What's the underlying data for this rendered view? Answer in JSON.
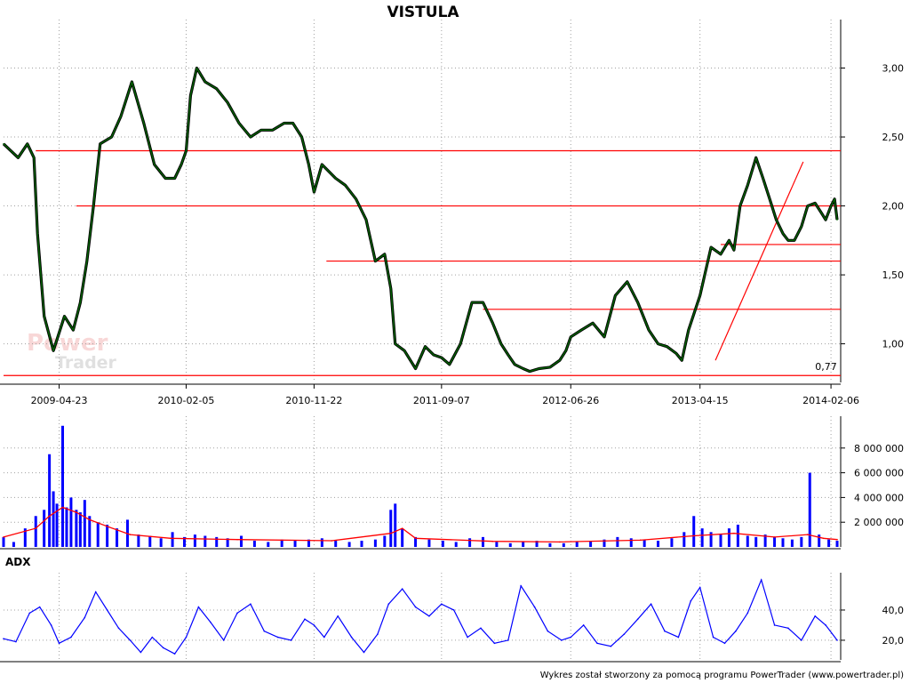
{
  "chart_data": [
    {
      "type": "line",
      "title": "VISTULA",
      "x_ticks": [
        "2009-04-23",
        "2010-02-05",
        "2010-11-22",
        "2011-09-07",
        "2012-06-26",
        "2013-04-15",
        "2014-02-06"
      ],
      "y_ticks": [
        "1,00",
        "1,50",
        "2,00",
        "2,50",
        "3,00"
      ],
      "ylim": [
        0.72,
        3.3
      ],
      "xlim": [
        "2008-12-18",
        "2014-02-28"
      ],
      "grid": true,
      "series": [
        {
          "color": "#006400",
          "x": [
            "2008-12-18",
            "2009-01-20",
            "2009-02-10",
            "2009-02-25",
            "2009-03-05",
            "2009-03-20",
            "2009-04-10",
            "2009-05-05",
            "2009-05-25",
            "2009-06-10",
            "2009-06-25",
            "2009-07-10",
            "2009-07-25",
            "2009-08-20",
            "2009-09-10",
            "2009-10-05",
            "2009-11-01",
            "2009-11-25",
            "2009-12-20",
            "2010-01-10",
            "2010-01-25",
            "2010-02-05",
            "2010-02-15",
            "2010-03-01",
            "2010-03-20",
            "2010-04-15",
            "2010-05-10",
            "2010-06-05",
            "2010-07-01",
            "2010-07-25",
            "2010-08-20",
            "2010-09-15",
            "2010-10-05",
            "2010-10-25",
            "2010-11-10",
            "2010-11-22",
            "2010-12-10",
            "2011-01-10",
            "2011-02-01",
            "2011-02-25",
            "2011-03-20",
            "2011-04-10",
            "2011-05-01",
            "2011-05-15",
            "2011-05-25",
            "2011-06-15",
            "2011-07-10",
            "2011-08-01",
            "2011-08-20",
            "2011-09-07",
            "2011-09-25",
            "2011-10-20",
            "2011-11-15",
            "2011-12-10",
            "2012-01-01",
            "2012-01-20",
            "2012-02-05",
            "2012-02-20",
            "2012-03-10",
            "2012-03-25",
            "2012-04-15",
            "2012-05-10",
            "2012-06-01",
            "2012-06-15",
            "2012-06-26",
            "2012-07-20",
            "2012-08-15",
            "2012-09-10",
            "2012-10-05",
            "2012-11-01",
            "2012-11-25",
            "2012-12-20",
            "2013-01-10",
            "2013-01-30",
            "2013-02-20",
            "2013-03-05",
            "2013-03-20",
            "2013-04-15",
            "2013-05-10",
            "2013-06-01",
            "2013-06-20",
            "2013-07-01",
            "2013-07-15",
            "2013-08-01",
            "2013-08-20",
            "2013-09-05",
            "2013-09-20",
            "2013-10-05",
            "2013-10-20",
            "2013-11-01",
            "2013-11-15",
            "2013-12-01",
            "2013-12-15",
            "2014-01-01",
            "2014-01-15",
            "2014-01-25",
            "2014-02-06",
            "2014-02-14",
            "2014-02-20"
          ],
          "y": [
            2.45,
            2.35,
            2.45,
            2.35,
            1.8,
            1.2,
            0.95,
            1.2,
            1.1,
            1.3,
            1.6,
            2.0,
            2.45,
            2.5,
            2.65,
            2.9,
            2.6,
            2.3,
            2.2,
            2.2,
            2.3,
            2.4,
            2.8,
            3.0,
            2.9,
            2.85,
            2.75,
            2.6,
            2.5,
            2.55,
            2.55,
            2.6,
            2.6,
            2.5,
            2.3,
            2.1,
            2.3,
            2.2,
            2.15,
            2.05,
            1.9,
            1.6,
            1.65,
            1.4,
            1.0,
            0.95,
            0.82,
            0.98,
            0.92,
            0.9,
            0.85,
            1.0,
            1.3,
            1.3,
            1.15,
            1.0,
            0.92,
            0.85,
            0.82,
            0.8,
            0.82,
            0.83,
            0.88,
            0.95,
            1.05,
            1.1,
            1.15,
            1.05,
            1.35,
            1.45,
            1.3,
            1.1,
            1.0,
            0.98,
            0.93,
            0.88,
            1.1,
            1.35,
            1.7,
            1.65,
            1.75,
            1.68,
            2.0,
            2.15,
            2.35,
            2.2,
            2.05,
            1.9,
            1.8,
            1.75,
            1.75,
            1.85,
            2.0,
            2.02,
            1.95,
            1.9,
            2.0,
            2.05,
            1.9
          ]
        }
      ],
      "lines": [
        {
          "color": "#ff0000",
          "x": [
            "2008-12-18",
            "2014-02-28"
          ],
          "y": [
            0.77,
            0.77
          ]
        },
        {
          "color": "#ff0000",
          "x": [
            "2009-03-01",
            "2014-02-28"
          ],
          "y": [
            2.4,
            2.4
          ]
        },
        {
          "color": "#ff0000",
          "x": [
            "2009-06-01",
            "2014-02-28"
          ],
          "y": [
            2.0,
            2.0
          ]
        },
        {
          "color": "#ff0000",
          "x": [
            "2010-12-20",
            "2014-02-28"
          ],
          "y": [
            1.6,
            1.6
          ]
        },
        {
          "color": "#ff0000",
          "x": [
            "2011-12-10",
            "2014-02-28"
          ],
          "y": [
            1.25,
            1.25
          ]
        },
        {
          "color": "#ff0000",
          "x": [
            "2013-06-01",
            "2014-02-28"
          ],
          "y": [
            1.72,
            1.72
          ]
        },
        {
          "color": "#ff0000",
          "x": [
            "2013-05-20",
            "2013-12-05"
          ],
          "y": [
            0.88,
            2.32
          ]
        }
      ],
      "annotations": [
        {
          "text": "0,77",
          "x": "2014-01-01",
          "y": 0.77,
          "color": "#ff0000"
        }
      ]
    },
    {
      "type": "bar",
      "y_ticks": [
        "2 000 000",
        "4 000 000",
        "6 000 000",
        "8 000 000"
      ],
      "ylim": [
        0,
        10000000
      ],
      "xlim": [
        "2008-12-18",
        "2014-02-28"
      ],
      "grid": true,
      "series": [
        {
          "color": "#0000ff",
          "x": [
            "2008-12-18",
            "2009-01-10",
            "2009-02-05",
            "2009-03-01",
            "2009-03-20",
            "2009-04-01",
            "2009-04-10",
            "2009-04-18",
            "2009-05-01",
            "2009-05-10",
            "2009-05-20",
            "2009-06-01",
            "2009-06-10",
            "2009-06-20",
            "2009-07-01",
            "2009-07-20",
            "2009-08-10",
            "2009-09-01",
            "2009-09-25",
            "2009-10-20",
            "2009-11-15",
            "2009-12-10",
            "2010-01-05",
            "2010-02-01",
            "2010-02-25",
            "2010-03-20",
            "2010-04-15",
            "2010-05-10",
            "2010-06-10",
            "2010-07-10",
            "2010-08-10",
            "2010-09-10",
            "2010-10-10",
            "2010-11-10",
            "2010-12-10",
            "2011-01-10",
            "2011-02-10",
            "2011-03-10",
            "2011-04-10",
            "2011-05-01",
            "2011-05-15",
            "2011-05-25",
            "2011-06-10",
            "2011-07-10",
            "2011-08-10",
            "2011-09-10",
            "2011-10-10",
            "2011-11-10",
            "2011-12-10",
            "2012-01-10",
            "2012-02-10",
            "2012-03-10",
            "2012-04-10",
            "2012-05-10",
            "2012-06-10",
            "2012-07-10",
            "2012-08-10",
            "2012-09-10",
            "2012-10-10",
            "2012-11-10",
            "2012-12-10",
            "2013-01-10",
            "2013-02-10",
            "2013-03-10",
            "2013-04-01",
            "2013-04-20",
            "2013-05-10",
            "2013-06-01",
            "2013-06-20",
            "2013-07-10",
            "2013-08-01",
            "2013-08-20",
            "2013-09-10",
            "2013-10-01",
            "2013-10-20",
            "2013-11-10",
            "2013-12-01",
            "2013-12-20",
            "2014-01-10",
            "2014-02-01",
            "2014-02-20"
          ],
          "values": [
            800000,
            400000,
            1500000,
            2500000,
            3000000,
            7500000,
            4500000,
            3500000,
            9800000,
            3200000,
            4000000,
            3000000,
            2800000,
            3800000,
            2500000,
            2000000,
            1800000,
            1500000,
            2200000,
            1000000,
            900000,
            700000,
            1200000,
            800000,
            1000000,
            900000,
            800000,
            700000,
            900000,
            500000,
            400000,
            600000,
            500000,
            600000,
            700000,
            500000,
            400000,
            500000,
            600000,
            900000,
            3000000,
            3500000,
            1500000,
            800000,
            600000,
            500000,
            400000,
            700000,
            800000,
            400000,
            300000,
            400000,
            500000,
            300000,
            300000,
            400000,
            500000,
            600000,
            800000,
            700000,
            600000,
            500000,
            700000,
            1200000,
            2500000,
            1500000,
            1200000,
            1000000,
            1500000,
            1800000,
            900000,
            800000,
            1000000,
            800000,
            700000,
            600000,
            800000,
            6000000,
            1000000,
            600000,
            500000
          ]
        },
        {
          "color": "#ff0000",
          "x": [
            "2008-12-18",
            "2009-03-01",
            "2009-04-01",
            "2009-05-01",
            "2009-06-01",
            "2009-07-01",
            "2009-08-15",
            "2009-10-01",
            "2010-01-01",
            "2010-06-01",
            "2011-01-01",
            "2011-05-15",
            "2011-06-10",
            "2011-07-10",
            "2012-01-01",
            "2012-06-01",
            "2012-12-01",
            "2013-04-01",
            "2013-07-01",
            "2013-10-01",
            "2013-12-15",
            "2014-01-20",
            "2014-02-20"
          ],
          "values": [
            800000,
            1500000,
            2500000,
            3200000,
            2800000,
            2200000,
            1600000,
            1000000,
            700000,
            600000,
            500000,
            1100000,
            1500000,
            700000,
            450000,
            400000,
            550000,
            900000,
            1100000,
            800000,
            1000000,
            700000,
            600000
          ]
        }
      ]
    },
    {
      "type": "line",
      "title": "ADX",
      "y_ticks": [
        "20,0",
        "40,0"
      ],
      "ylim": [
        7,
        60
      ],
      "xlim": [
        "2008-12-18",
        "2014-02-28"
      ],
      "grid": true,
      "series": [
        {
          "color": "#0000ff",
          "x": [
            "2008-12-18",
            "2009-01-15",
            "2009-02-15",
            "2009-03-10",
            "2009-04-05",
            "2009-04-23",
            "2009-05-20",
            "2009-06-20",
            "2009-07-15",
            "2009-08-10",
            "2009-09-05",
            "2009-10-01",
            "2009-10-25",
            "2009-11-20",
            "2009-12-15",
            "2010-01-10",
            "2010-02-05",
            "2010-03-05",
            "2010-04-01",
            "2010-05-01",
            "2010-06-01",
            "2010-07-01",
            "2010-08-01",
            "2010-09-01",
            "2010-10-01",
            "2010-11-01",
            "2010-11-22",
            "2010-12-15",
            "2011-01-15",
            "2011-02-15",
            "2011-03-15",
            "2011-04-15",
            "2011-05-10",
            "2011-06-10",
            "2011-07-10",
            "2011-08-10",
            "2011-09-07",
            "2011-10-05",
            "2011-11-05",
            "2011-12-05",
            "2012-01-05",
            "2012-02-05",
            "2012-03-05",
            "2012-04-05",
            "2012-05-05",
            "2012-06-05",
            "2012-06-26",
            "2012-07-25",
            "2012-08-25",
            "2012-09-25",
            "2012-10-25",
            "2012-11-25",
            "2012-12-25",
            "2013-01-25",
            "2013-02-25",
            "2013-03-25",
            "2013-04-15",
            "2013-05-15",
            "2013-06-10",
            "2013-07-05",
            "2013-08-01",
            "2013-09-01",
            "2013-10-01",
            "2013-11-01",
            "2013-12-01",
            "2014-01-01",
            "2014-01-25",
            "2014-02-20"
          ],
          "values": [
            21,
            19,
            38,
            42,
            30,
            18,
            22,
            35,
            52,
            40,
            28,
            20,
            12,
            22,
            15,
            11,
            22,
            42,
            32,
            20,
            38,
            44,
            26,
            22,
            20,
            34,
            30,
            22,
            36,
            22,
            12,
            24,
            44,
            54,
            42,
            36,
            44,
            40,
            22,
            28,
            18,
            20,
            56,
            42,
            26,
            20,
            22,
            30,
            18,
            16,
            24,
            34,
            44,
            26,
            22,
            46,
            55,
            22,
            18,
            26,
            38,
            60,
            30,
            28,
            20,
            36,
            30,
            20
          ]
        }
      ]
    }
  ],
  "footer": "Wykres został stworzony za pomocą programu PowerTrader (www.powertrader.pl)",
  "watermark": {
    "line1": "Power",
    "line2": "Trader"
  }
}
